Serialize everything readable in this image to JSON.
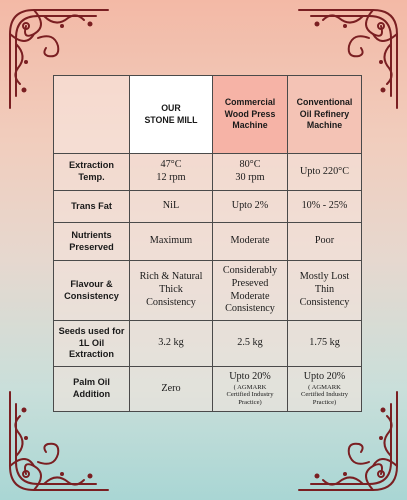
{
  "headers": {
    "ours": [
      "OUR",
      "STONE MILL"
    ],
    "wood": [
      "Commercial",
      "Wood Press",
      "Machine"
    ],
    "conv": [
      "Conventional",
      "Oil Refinery",
      "Machine"
    ]
  },
  "rows": [
    {
      "label": [
        "Extraction",
        "Temp."
      ],
      "ours": [
        "47°C",
        "12 rpm"
      ],
      "wood": [
        "80°C",
        "30 rpm"
      ],
      "conv": [
        "Upto 220°C"
      ]
    },
    {
      "label": [
        "Trans Fat"
      ],
      "ours": [
        "NiL"
      ],
      "wood": [
        "Upto 2%"
      ],
      "conv": [
        "10% - 25%"
      ]
    },
    {
      "label": [
        "Nutrients",
        "Preserved"
      ],
      "ours": [
        "Maximum"
      ],
      "wood": [
        "Moderate"
      ],
      "conv": [
        "Poor"
      ]
    },
    {
      "label": [
        "Flavour &",
        "Consistency"
      ],
      "ours": [
        "Rich & Natural",
        "Thick",
        "Consistency"
      ],
      "wood": [
        "Considerably",
        "Preseved",
        "Moderate",
        "Consistency"
      ],
      "conv": [
        "Mostly Lost",
        "Thin",
        "Consistency"
      ]
    },
    {
      "label": [
        "Seeds used for",
        "1L Oil",
        "Extraction"
      ],
      "ours": [
        "3.2 kg"
      ],
      "wood": [
        "2.5 kg"
      ],
      "conv": [
        "1.75 kg"
      ]
    },
    {
      "label": [
        "Palm Oil",
        "Addition"
      ],
      "ours": [
        "Zero"
      ],
      "wood": [
        "Upto 20%"
      ],
      "wood_note": [
        "( AGMARK",
        "Certified Industry",
        "Practice)"
      ],
      "conv": [
        "Upto 20%"
      ],
      "conv_note": [
        "( AGMARK",
        "Certified Industry",
        "Practice)"
      ]
    }
  ],
  "colors": {
    "ornament": "#7a1f22",
    "border": "#4a4a4a",
    "wood_header": "#f6b3a6",
    "conv_header": "#f4c3b5"
  },
  "icons": {
    "corners": "ornamental-swirl-icon"
  }
}
